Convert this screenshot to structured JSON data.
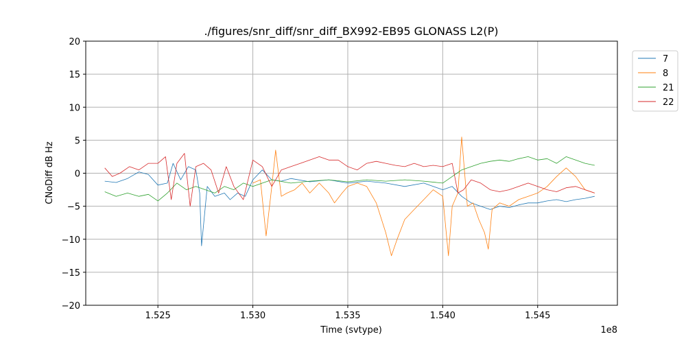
{
  "chart_data": {
    "type": "line",
    "title": "./figures/snr_diff/snr_diff_BX992-EB95 GLONASS  L2(P)",
    "xlabel": "Time (svtype)",
    "ylabel": "CNoDiff dB Hz",
    "x_offset_label": "1e8",
    "xlim": [
      1.5212,
      1.5492
    ],
    "ylim": [
      -20,
      20
    ],
    "xticks": [
      1.525,
      1.53,
      1.535,
      1.54,
      1.545
    ],
    "xtick_labels": [
      "1.525",
      "1.530",
      "1.535",
      "1.540",
      "1.545"
    ],
    "yticks": [
      -20,
      -15,
      -10,
      -5,
      0,
      5,
      10,
      15,
      20
    ],
    "ytick_labels": [
      "−20",
      "−15",
      "−10",
      "−5",
      "0",
      "5",
      "10",
      "15",
      "20"
    ],
    "grid": true,
    "legend_position": "outside-top-right",
    "series": [
      {
        "name": "7",
        "color": "#1f77b4",
        "x": [
          1.5222,
          1.5228,
          1.5234,
          1.524,
          1.5245,
          1.525,
          1.5255,
          1.5258,
          1.5262,
          1.5266,
          1.527,
          1.5272,
          1.5273,
          1.5276,
          1.528,
          1.5285,
          1.5288,
          1.5292,
          1.5296,
          1.53,
          1.5305,
          1.531,
          1.5315,
          1.532,
          1.533,
          1.534,
          1.535,
          1.536,
          1.537,
          1.538,
          1.539,
          1.54,
          1.5405,
          1.541,
          1.5415,
          1.542,
          1.5425,
          1.543,
          1.5435,
          1.544,
          1.5445,
          1.545,
          1.5455,
          1.546,
          1.5465,
          1.547,
          1.5475,
          1.548
        ],
        "y": [
          -1.2,
          -1.4,
          -0.8,
          0.2,
          -0.2,
          -1.8,
          -1.5,
          1.5,
          -1.0,
          1.0,
          0.5,
          -3.0,
          -11.0,
          -2.0,
          -3.5,
          -3.0,
          -4.0,
          -3.0,
          -3.5,
          -1.0,
          0.5,
          -1.0,
          -1.2,
          -0.8,
          -1.3,
          -1.0,
          -1.5,
          -1.2,
          -1.5,
          -2.0,
          -1.5,
          -2.5,
          -2.0,
          -3.5,
          -4.5,
          -5.0,
          -5.5,
          -5.0,
          -5.2,
          -4.8,
          -4.5,
          -4.5,
          -4.2,
          -4.0,
          -4.3,
          -4.0,
          -3.8,
          -3.5
        ]
      },
      {
        "name": "8",
        "color": "#ff7f0e",
        "x": [
          1.53,
          1.5304,
          1.5307,
          1.531,
          1.5312,
          1.5315,
          1.5318,
          1.5322,
          1.5326,
          1.533,
          1.5335,
          1.534,
          1.5343,
          1.5347,
          1.535,
          1.5355,
          1.536,
          1.5365,
          1.537,
          1.5373,
          1.5376,
          1.538,
          1.5385,
          1.539,
          1.5395,
          1.54,
          1.5403,
          1.5405,
          1.5408,
          1.541,
          1.5413,
          1.5416,
          1.5419,
          1.5422,
          1.5424,
          1.5426,
          1.543,
          1.5435,
          1.544,
          1.5445,
          1.545,
          1.5455,
          1.546,
          1.5465,
          1.547,
          1.5475,
          1.548
        ],
        "y": [
          -1.5,
          -1.0,
          -9.5,
          -2.0,
          3.5,
          -3.5,
          -3.0,
          -2.5,
          -1.5,
          -3.0,
          -1.5,
          -3.0,
          -4.5,
          -3.0,
          -2.0,
          -1.5,
          -2.0,
          -4.5,
          -9.0,
          -12.5,
          -10.0,
          -7.0,
          -5.5,
          -4.0,
          -2.5,
          -3.5,
          -12.5,
          -5.0,
          -3.0,
          5.5,
          -5.0,
          -4.5,
          -7.0,
          -9.0,
          -11.5,
          -5.5,
          -4.5,
          -5.0,
          -4.0,
          -3.5,
          -3.0,
          -2.0,
          -0.5,
          0.8,
          -0.5,
          -2.5,
          -3.0
        ]
      },
      {
        "name": "21",
        "color": "#2ca02c",
        "x": [
          1.5222,
          1.5228,
          1.5234,
          1.524,
          1.5245,
          1.525,
          1.5255,
          1.526,
          1.5265,
          1.527,
          1.5275,
          1.528,
          1.5285,
          1.529,
          1.5295,
          1.53,
          1.5305,
          1.531,
          1.532,
          1.533,
          1.534,
          1.535,
          1.536,
          1.537,
          1.538,
          1.539,
          1.54,
          1.5405,
          1.541,
          1.5415,
          1.542,
          1.5425,
          1.543,
          1.5435,
          1.544,
          1.5445,
          1.545,
          1.5455,
          1.546,
          1.5465,
          1.547,
          1.5475,
          1.548
        ],
        "y": [
          -2.8,
          -3.5,
          -3.0,
          -3.5,
          -3.2,
          -4.2,
          -3.0,
          -1.5,
          -2.5,
          -2.0,
          -2.5,
          -3.0,
          -2.0,
          -2.5,
          -1.5,
          -2.0,
          -1.5,
          -1.0,
          -1.5,
          -1.2,
          -1.0,
          -1.3,
          -1.0,
          -1.2,
          -1.0,
          -1.2,
          -1.5,
          -0.5,
          0.5,
          1.0,
          1.5,
          1.8,
          2.0,
          1.8,
          2.2,
          2.5,
          2.0,
          2.2,
          1.5,
          2.5,
          2.0,
          1.5,
          1.2
        ]
      },
      {
        "name": "22",
        "color": "#d62728",
        "x": [
          1.5222,
          1.5226,
          1.523,
          1.5235,
          1.524,
          1.5245,
          1.525,
          1.5254,
          1.5257,
          1.526,
          1.5264,
          1.5267,
          1.527,
          1.5274,
          1.5278,
          1.5282,
          1.5286,
          1.529,
          1.5295,
          1.53,
          1.5305,
          1.531,
          1.5315,
          1.532,
          1.5325,
          1.533,
          1.5335,
          1.534,
          1.5345,
          1.535,
          1.5355,
          1.536,
          1.5365,
          1.537,
          1.5375,
          1.538,
          1.5385,
          1.539,
          1.5395,
          1.54,
          1.5405,
          1.5408,
          1.5411,
          1.5415,
          1.542,
          1.5425,
          1.543,
          1.5435,
          1.544,
          1.5445,
          1.545,
          1.5455,
          1.546,
          1.5465,
          1.547,
          1.5475,
          1.548
        ],
        "y": [
          0.8,
          -0.5,
          0.0,
          1.0,
          0.5,
          1.5,
          1.5,
          2.5,
          -4.0,
          1.5,
          3.0,
          -5.0,
          1.0,
          1.5,
          0.5,
          -3.0,
          1.0,
          -2.0,
          -4.0,
          2.0,
          1.0,
          -2.0,
          0.5,
          1.0,
          1.5,
          2.0,
          2.5,
          2.0,
          2.0,
          1.0,
          0.5,
          1.5,
          1.8,
          1.5,
          1.2,
          1.0,
          1.5,
          1.0,
          1.2,
          1.0,
          1.5,
          -3.0,
          -2.5,
          -1.0,
          -1.5,
          -2.5,
          -2.8,
          -2.5,
          -2.0,
          -1.5,
          -2.0,
          -2.5,
          -2.8,
          -2.2,
          -2.0,
          -2.5,
          -3.0
        ]
      }
    ]
  }
}
